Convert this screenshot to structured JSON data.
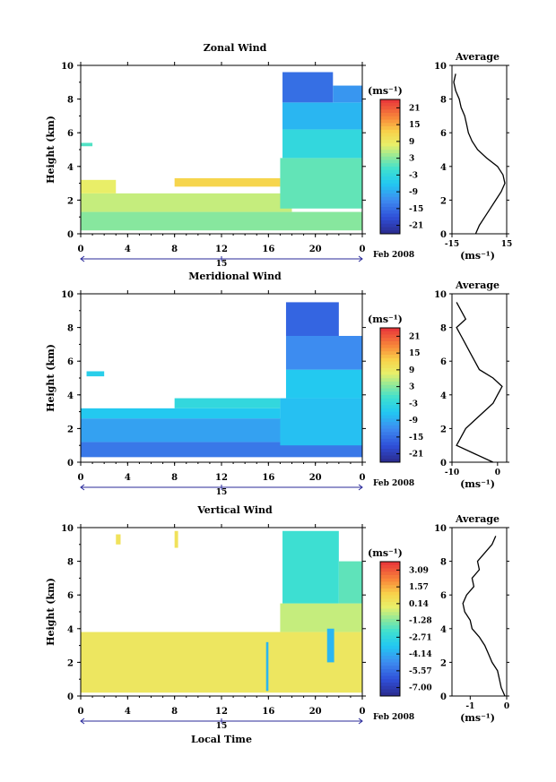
{
  "xlabel": "Local Time",
  "date_label": "Feb 2008",
  "unit": "(ms⁻¹)",
  "chart_data": [
    {
      "type": "heatmap",
      "title": "Zonal Wind",
      "ylabel": "Height (km)",
      "xlabel": "",
      "x_ticks": [
        "0",
        "4",
        "8",
        "12",
        "16",
        "20",
        "0"
      ],
      "y_ticks": [
        "0",
        "2",
        "4",
        "6",
        "8",
        "10"
      ],
      "xlim": [
        0,
        24
      ],
      "ylim": [
        0,
        10
      ],
      "day_label": "15",
      "colorbar": {
        "ticks": [
          "21",
          "15",
          "9",
          "3",
          "-3",
          "-9",
          "-15",
          "-21"
        ],
        "range": [
          -24,
          24
        ],
        "unit": "(ms⁻¹)"
      },
      "regions": [
        {
          "x0": 0,
          "x1": 24,
          "y0": 0.2,
          "y1": 1.3,
          "value": 3
        },
        {
          "x0": 0,
          "x1": 18,
          "y0": 1.3,
          "y1": 2.4,
          "value": 6
        },
        {
          "x0": 0,
          "x1": 3,
          "y0": 2.4,
          "y1": 3.2,
          "value": 8
        },
        {
          "x0": 8,
          "x1": 17,
          "y0": 2.8,
          "y1": 3.3,
          "value": 12
        },
        {
          "x0": 17,
          "x1": 24,
          "y0": 1.5,
          "y1": 4.5,
          "value": 1
        },
        {
          "x0": 17.2,
          "x1": 24,
          "y0": 4.5,
          "y1": 6.2,
          "value": -3
        },
        {
          "x0": 17.2,
          "x1": 24,
          "y0": 6.2,
          "y1": 7.8,
          "value": -8
        },
        {
          "x0": 17.2,
          "x1": 21.5,
          "y0": 7.8,
          "y1": 9.6,
          "value": -15
        },
        {
          "x0": 21.5,
          "x1": 24,
          "y0": 7.8,
          "y1": 8.8,
          "value": -11
        },
        {
          "x0": 0,
          "x1": 1,
          "y0": 5.2,
          "y1": 5.4,
          "value": 0
        }
      ],
      "average_profile": {
        "title": "Average",
        "xlim": [
          -15,
          15
        ],
        "x_ticks": [
          "-15",
          "15"
        ],
        "y_ticks": [
          "0",
          "2",
          "4",
          "6",
          "8",
          "10"
        ],
        "xlabel": "(ms⁻¹)",
        "height": [
          0,
          0.5,
          1,
          1.5,
          2,
          2.5,
          3,
          3.5,
          4,
          4.5,
          5,
          5.5,
          6,
          6.5,
          7,
          7.5,
          8,
          8.5,
          9,
          9.5
        ],
        "value": [
          -2,
          0,
          3,
          6,
          9,
          12,
          14,
          13,
          10,
          4,
          -1,
          -4,
          -6,
          -7,
          -8,
          -10,
          -11,
          -13,
          -14,
          -13
        ]
      }
    },
    {
      "type": "heatmap",
      "title": "Meridional Wind",
      "ylabel": "Height (km)",
      "xlabel": "",
      "x_ticks": [
        "0",
        "4",
        "8",
        "12",
        "16",
        "20",
        "0"
      ],
      "y_ticks": [
        "0",
        "2",
        "4",
        "6",
        "8",
        "10"
      ],
      "xlim": [
        0,
        24
      ],
      "ylim": [
        0,
        10
      ],
      "day_label": "15",
      "colorbar": {
        "ticks": [
          "21",
          "15",
          "9",
          "3",
          "-3",
          "-9",
          "-15",
          "-21"
        ],
        "range": [
          -24,
          24
        ],
        "unit": "(ms⁻¹)"
      },
      "regions": [
        {
          "x0": 0,
          "x1": 24,
          "y0": 0.3,
          "y1": 1.2,
          "value": -14
        },
        {
          "x0": 0,
          "x1": 18,
          "y0": 1.2,
          "y1": 2.6,
          "value": -10
        },
        {
          "x0": 0,
          "x1": 17,
          "y0": 2.6,
          "y1": 3.2,
          "value": -6
        },
        {
          "x0": 8,
          "x1": 17,
          "y0": 3.2,
          "y1": 3.8,
          "value": -3
        },
        {
          "x0": 17,
          "x1": 24,
          "y0": 1,
          "y1": 3.8,
          "value": -7
        },
        {
          "x0": 17.5,
          "x1": 24,
          "y0": 3.8,
          "y1": 5.5,
          "value": -6
        },
        {
          "x0": 17.5,
          "x1": 24,
          "y0": 5.5,
          "y1": 7.5,
          "value": -12
        },
        {
          "x0": 17.5,
          "x1": 22,
          "y0": 7.5,
          "y1": 9.5,
          "value": -16
        },
        {
          "x0": 0.5,
          "x1": 2,
          "y0": 5.1,
          "y1": 5.4,
          "value": -5
        }
      ],
      "average_profile": {
        "title": "Average",
        "xlim": [
          -10,
          2
        ],
        "x_ticks": [
          "-10",
          "0"
        ],
        "y_ticks": [
          "0",
          "2",
          "4",
          "6",
          "8",
          "10"
        ],
        "xlabel": "(ms⁻¹)",
        "height": [
          0,
          0.5,
          1,
          1.5,
          2,
          2.5,
          3,
          3.5,
          4,
          4.5,
          5,
          5.5,
          6,
          6.5,
          7,
          7.5,
          8,
          8.5,
          9,
          9.5
        ],
        "value": [
          -1,
          -5,
          -9,
          -8,
          -7,
          -5,
          -3,
          -1,
          0,
          1,
          -1,
          -4,
          -5,
          -6,
          -7,
          -8,
          -9,
          -7,
          -8,
          -9
        ]
      }
    },
    {
      "type": "heatmap",
      "title": "Vertical Wind",
      "ylabel": "Height (km)",
      "xlabel": "Local Time",
      "x_ticks": [
        "0",
        "4",
        "8",
        "12",
        "16",
        "20",
        "0"
      ],
      "y_ticks": [
        "0",
        "2",
        "4",
        "6",
        "8",
        "10"
      ],
      "xlim": [
        0,
        24
      ],
      "ylim": [
        0,
        10
      ],
      "day_label": "15",
      "colorbar": {
        "ticks": [
          "3.09",
          "1.57",
          "0.14",
          "-1.28",
          "-2.71",
          "-4.14",
          "-5.57",
          "-7.00"
        ],
        "range": [
          -8,
          4
        ],
        "unit": "(ms⁻¹)"
      },
      "regions": [
        {
          "x0": 0,
          "x1": 24,
          "y0": 0.2,
          "y1": 3.8,
          "value": 0.3
        },
        {
          "x0": 17,
          "x1": 24,
          "y0": 3.8,
          "y1": 5.5,
          "value": -0.5
        },
        {
          "x0": 17.2,
          "x1": 22,
          "y0": 5.5,
          "y1": 9.8,
          "value": -2.3
        },
        {
          "x0": 22,
          "x1": 24,
          "y0": 5.5,
          "y1": 8,
          "value": -1.8
        },
        {
          "x0": 15.8,
          "x1": 16,
          "y0": 0.3,
          "y1": 3.2,
          "value": -4
        },
        {
          "x0": 21,
          "x1": 21.6,
          "y0": 2,
          "y1": 4,
          "value": -4
        },
        {
          "x0": 8,
          "x1": 8.3,
          "y0": 8.8,
          "y1": 9.8,
          "value": 0.5
        },
        {
          "x0": 3,
          "x1": 3.4,
          "y0": 9,
          "y1": 9.6,
          "value": 0.5
        }
      ],
      "average_profile": {
        "title": "Average",
        "xlim": [
          -1.5,
          0
        ],
        "x_ticks": [
          "-1",
          "0"
        ],
        "y_ticks": [
          "0",
          "2",
          "4",
          "6",
          "8",
          "10"
        ],
        "xlabel": "(ms⁻¹)",
        "height": [
          0,
          0.5,
          1,
          1.5,
          2,
          2.5,
          3,
          3.5,
          4,
          4.5,
          5,
          5.5,
          6,
          6.5,
          7,
          7.5,
          8,
          8.5,
          9,
          9.5
        ],
        "value": [
          -0.05,
          -0.15,
          -0.2,
          -0.25,
          -0.4,
          -0.5,
          -0.6,
          -0.75,
          -0.95,
          -1.0,
          -1.15,
          -1.2,
          -1.1,
          -0.9,
          -0.95,
          -0.75,
          -0.8,
          -0.6,
          -0.4,
          -0.3
        ]
      }
    }
  ]
}
